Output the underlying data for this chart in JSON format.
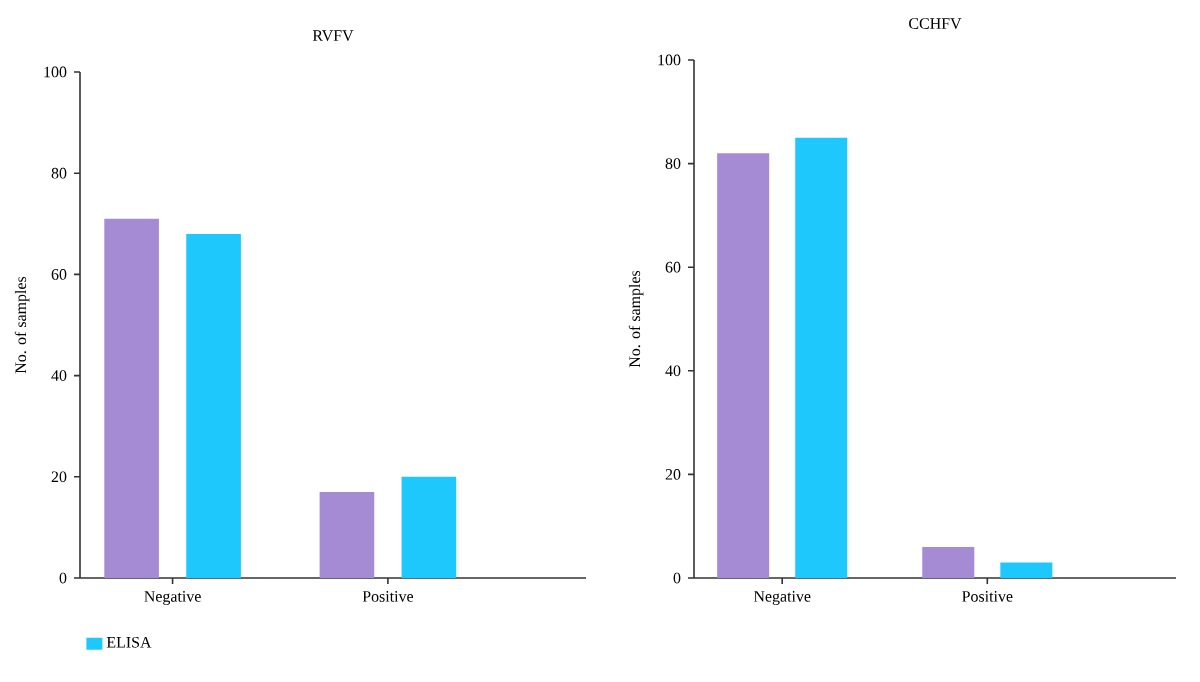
{
  "chart_data": [
    {
      "type": "bar",
      "title": "RVFV",
      "ylabel": "No. of samples",
      "categories": [
        "Negative",
        "Positive"
      ],
      "series": [
        {
          "color": "#a58bd3",
          "values": [
            71,
            17
          ]
        },
        {
          "name": "ELISA",
          "color": "#1ec8fc",
          "values": [
            68,
            20
          ]
        }
      ],
      "ylim": [
        0,
        100
      ],
      "yticks": [
        0,
        20,
        40,
        60,
        80,
        100
      ],
      "grid": false,
      "legend": "bottom left"
    },
    {
      "type": "bar",
      "title": "CCHFV",
      "ylabel": "No. of samples",
      "categories": [
        "Negative",
        "Positive"
      ],
      "series": [
        {
          "color": "#a58bd3",
          "values": [
            82,
            6
          ]
        },
        {
          "color": "#1ec8fc",
          "values": [
            85,
            3
          ]
        }
      ],
      "ylim": [
        0,
        100
      ],
      "yticks": [
        0,
        20,
        40,
        60,
        80,
        100
      ],
      "grid": false
    }
  ]
}
